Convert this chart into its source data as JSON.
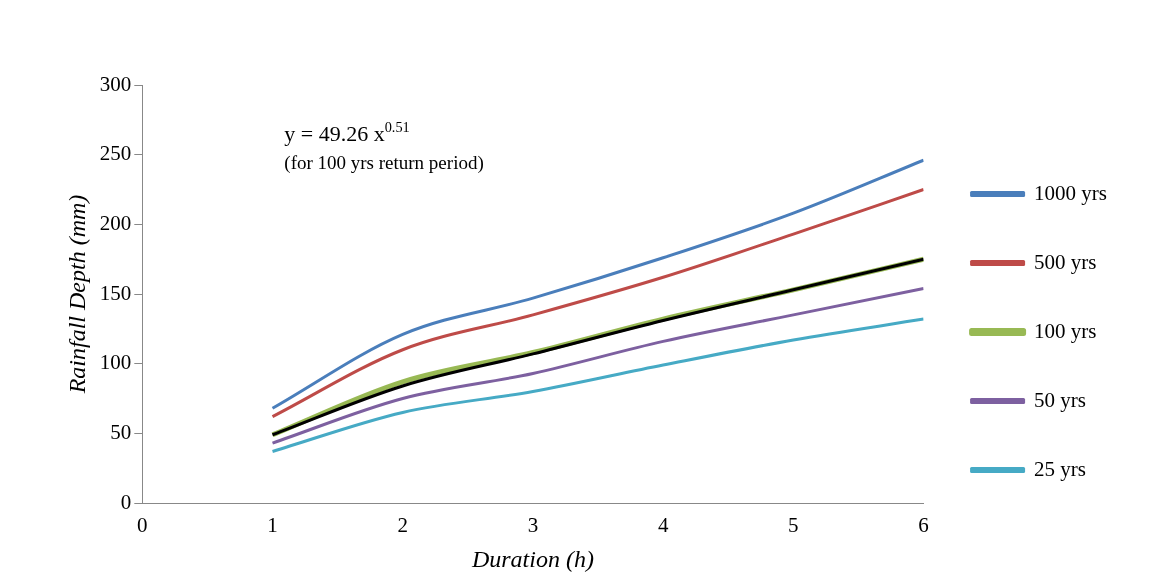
{
  "chart_data": {
    "type": "line",
    "xlabel": "Duration (h)",
    "ylabel": "Rainfall Depth (mm)",
    "x": [
      1,
      2,
      3,
      4,
      5,
      6
    ],
    "series": [
      {
        "name": "1000 yrs",
        "color": "#4a7ebb",
        "values": [
          68,
          121,
          147,
          176,
          208,
          246
        ]
      },
      {
        "name": "500 yrs",
        "color": "#be4b48",
        "values": [
          62,
          110,
          135,
          162,
          193,
          225
        ]
      },
      {
        "name": "100 yrs",
        "color": "#98b954",
        "values": [
          49,
          87,
          108,
          132,
          153,
          175
        ]
      },
      {
        "name": "50 yrs",
        "color": "#7d60a0",
        "values": [
          43,
          75,
          93,
          116,
          135,
          154
        ]
      },
      {
        "name": "25 yrs",
        "color": "#46aac5",
        "values": [
          37,
          65,
          80,
          99,
          117,
          132
        ]
      },
      {
        "color": "#000000",
        "values": [
          49,
          84,
          107,
          131,
          153,
          175
        ]
      }
    ],
    "xlim": [
      0,
      6
    ],
    "xticks": [
      0,
      1,
      2,
      3,
      4,
      5,
      6
    ],
    "ylim": [
      0,
      300
    ],
    "yticks": [
      0,
      50,
      100,
      150,
      200,
      250,
      300
    ],
    "grid": false,
    "legend": "right",
    "marker": "none",
    "line_style": "solid",
    "annotations": [
      "y = 49.26 x$^{0.51}$",
      "(for 100 yrs return period)"
    ]
  }
}
